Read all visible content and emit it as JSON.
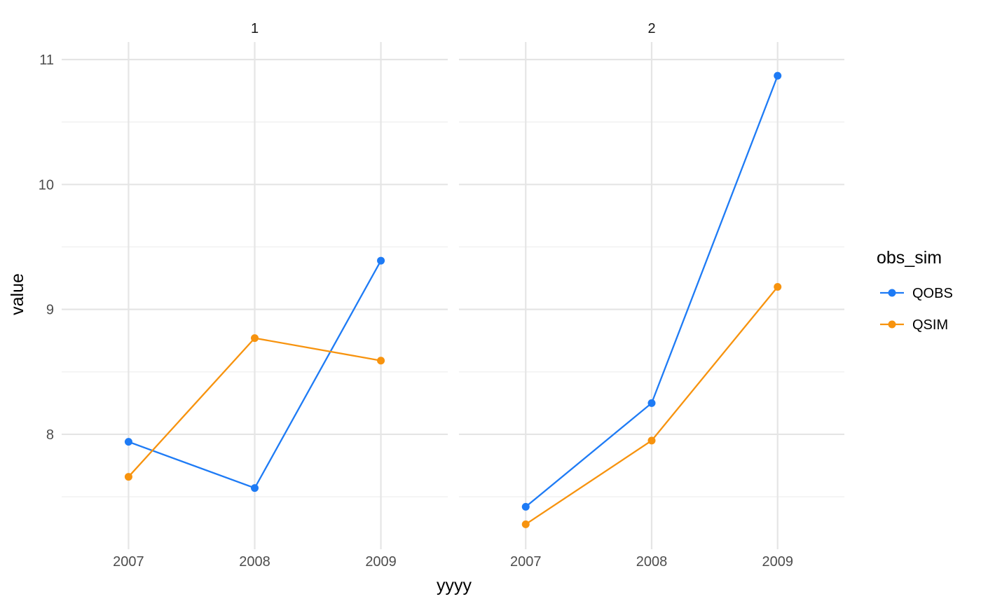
{
  "chart_data": {
    "type": "line",
    "xlabel": "yyyy",
    "ylabel": "value",
    "legend": {
      "title": "obs_sim",
      "position": "right",
      "items": [
        {
          "name": "QOBS",
          "color": "#1E7BF5"
        },
        {
          "name": "QSIM",
          "color": "#F7930E"
        }
      ]
    },
    "x_ticks": [
      "2007",
      "2008",
      "2009"
    ],
    "y_ticks": [
      8,
      9,
      10,
      11
    ],
    "y_tick_labels": [
      "8",
      "9",
      "10",
      "11"
    ],
    "ylim": [
      7.08,
      11.14
    ],
    "xlim": [
      2006.47,
      2009.53
    ],
    "grid": true,
    "panels": [
      {
        "label": "1",
        "series": [
          {
            "name": "QOBS",
            "x": [
              2007,
              2008,
              2009
            ],
            "values": [
              7.94,
              7.57,
              9.39
            ]
          },
          {
            "name": "QSIM",
            "x": [
              2007,
              2008,
              2009
            ],
            "values": [
              7.66,
              8.77,
              8.59
            ]
          }
        ]
      },
      {
        "label": "2",
        "series": [
          {
            "name": "QOBS",
            "x": [
              2007,
              2008,
              2009
            ],
            "values": [
              7.42,
              8.25,
              10.87
            ]
          },
          {
            "name": "QSIM",
            "x": [
              2007,
              2008,
              2009
            ],
            "values": [
              7.28,
              7.95,
              9.18
            ]
          }
        ]
      }
    ]
  }
}
